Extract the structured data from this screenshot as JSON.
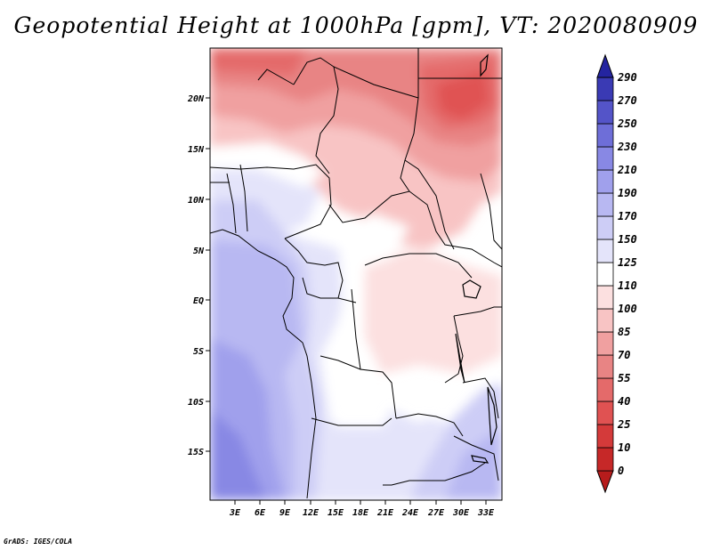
{
  "title": "Geopotential Height at 1000hPa [gpm], VT: 2020080909",
  "footer": "GrADS: IGES/COLA",
  "map": {
    "lat_ticks": [
      "20N",
      "15N",
      "10N",
      "5N",
      "EQ",
      "5S",
      "10S",
      "15S"
    ],
    "lon_ticks": [
      "3E",
      "6E",
      "9E",
      "12E",
      "15E",
      "18E",
      "21E",
      "24E",
      "27E",
      "30E",
      "33E"
    ]
  },
  "colorbar": {
    "levels": [
      "0",
      "10",
      "25",
      "40",
      "55",
      "70",
      "85",
      "100",
      "110",
      "125",
      "150",
      "170",
      "190",
      "210",
      "230",
      "250",
      "270",
      "290"
    ],
    "colors": [
      "#b71c1c",
      "#c62828",
      "#d43a3a",
      "#e05252",
      "#e46a6a",
      "#e88484",
      "#f0a0a0",
      "#f8c4c4",
      "#fce0e0",
      "#ffffff",
      "#e4e4fa",
      "#cdcdf6",
      "#b8b8f2",
      "#a0a0ec",
      "#8888e4",
      "#6e6ed8",
      "#5454c8",
      "#3a3ab4",
      "#2424a0"
    ]
  }
}
